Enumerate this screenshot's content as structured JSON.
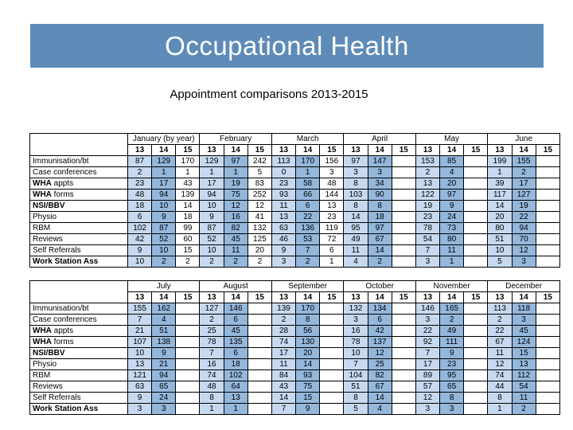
{
  "slide": {
    "title": "Occupational Health",
    "subtitle": "Appointment comparisons 2013-2015"
  },
  "colors": {
    "banner_blue": "#5e8bb7",
    "year13_cell": "#c6d9f0",
    "year14_cell": "#94b7dc",
    "year15_cell": "#ffffff"
  },
  "tables": [
    {
      "id": "jan-jun",
      "months": [
        "January (by year)",
        "February",
        "March",
        "April",
        "May",
        "June"
      ],
      "years": [
        "13",
        "14",
        "15"
      ],
      "rows": [
        {
          "label": [
            {
              "text": "Immunisation/bt",
              "bold": false
            }
          ],
          "values": [
            "87",
            "129",
            "170",
            "129",
            "97",
            "242",
            "113",
            "170",
            "156",
            "97",
            "147",
            "",
            "153",
            "85",
            "",
            "199",
            "155",
            ""
          ]
        },
        {
          "label": [
            {
              "text": "Case conferences",
              "bold": false
            }
          ],
          "values": [
            "2",
            "1",
            "1",
            "1",
            "1",
            "5",
            "0",
            "1",
            "3",
            "3",
            "3",
            "",
            "2",
            "4",
            "",
            "1",
            "2",
            ""
          ]
        },
        {
          "label": [
            {
              "text": "WHA",
              "bold": true
            },
            {
              "text": " appts",
              "bold": false
            }
          ],
          "values": [
            "23",
            "17",
            "43",
            "17",
            "19",
            "83",
            "23",
            "58",
            "48",
            "8",
            "34",
            "",
            "13",
            "20",
            "",
            "39",
            "17",
            ""
          ]
        },
        {
          "label": [
            {
              "text": "WHA",
              "bold": true
            },
            {
              "text": " forms",
              "bold": false
            }
          ],
          "values": [
            "48",
            "94",
            "139",
            "94",
            "75",
            "252",
            "93",
            "66",
            "144",
            "103",
            "90",
            "",
            "122",
            "97",
            "",
            "117",
            "127",
            ""
          ]
        },
        {
          "label": [
            {
              "text": "NSI/BBV",
              "bold": true
            }
          ],
          "values": [
            "18",
            "10",
            "14",
            "10",
            "12",
            "12",
            "11",
            "6",
            "13",
            "8",
            "8",
            "",
            "19",
            "9",
            "",
            "14",
            "19",
            ""
          ]
        },
        {
          "label": [
            {
              "text": "Physio",
              "bold": false
            }
          ],
          "values": [
            "6",
            "9",
            "18",
            "9",
            "16",
            "41",
            "13",
            "22",
            "23",
            "14",
            "18",
            "",
            "23",
            "24",
            "",
            "20",
            "22",
            ""
          ]
        },
        {
          "label": [
            {
              "text": "RBM",
              "bold": false
            }
          ],
          "values": [
            "102",
            "87",
            "99",
            "87",
            "82",
            "132",
            "63",
            "136",
            "119",
            "95",
            "97",
            "",
            "78",
            "73",
            "",
            "80",
            "94",
            ""
          ]
        },
        {
          "label": [
            {
              "text": "Reviews",
              "bold": false
            }
          ],
          "values": [
            "42",
            "52",
            "60",
            "52",
            "45",
            "125",
            "46",
            "53",
            "72",
            "49",
            "67",
            "",
            "54",
            "80",
            "",
            "51",
            "70",
            ""
          ]
        },
        {
          "label": [
            {
              "text": "Self Referrals",
              "bold": false
            }
          ],
          "values": [
            "9",
            "10",
            "15",
            "10",
            "11",
            "20",
            "9",
            "7",
            "6",
            "11",
            "14",
            "",
            "7",
            "11",
            "",
            "10",
            "12",
            ""
          ]
        },
        {
          "label": [
            {
              "text": "Work Station Ass",
              "bold": true
            }
          ],
          "values": [
            "10",
            "2",
            "2",
            "2",
            "2",
            "2",
            "3",
            "2",
            "1",
            "4",
            "2",
            "",
            "3",
            "1",
            "",
            "5",
            "3",
            ""
          ]
        }
      ]
    },
    {
      "id": "jul-dec",
      "months": [
        "July",
        "August",
        "September",
        "October",
        "November",
        "December"
      ],
      "years": [
        "13",
        "14",
        "15"
      ],
      "rows": [
        {
          "label": [
            {
              "text": "Immunisation/bt",
              "bold": false
            }
          ],
          "values": [
            "155",
            "162",
            "",
            "127",
            "146",
            "",
            "139",
            "170",
            "",
            "132",
            "134",
            "",
            "146",
            "165",
            "",
            "113",
            "118",
            ""
          ]
        },
        {
          "label": [
            {
              "text": "Case conferences",
              "bold": false
            }
          ],
          "values": [
            "7",
            "4",
            "",
            "2",
            "6",
            "",
            "2",
            "8",
            "",
            "3",
            "6",
            "",
            "3",
            "2",
            "",
            "2",
            "3",
            ""
          ]
        },
        {
          "label": [
            {
              "text": "WHA",
              "bold": true
            },
            {
              "text": " appts",
              "bold": false
            }
          ],
          "values": [
            "21",
            "51",
            "",
            "25",
            "45",
            "",
            "28",
            "56",
            "",
            "16",
            "42",
            "",
            "22",
            "49",
            "",
            "22",
            "45",
            ""
          ]
        },
        {
          "label": [
            {
              "text": "WHA",
              "bold": true
            },
            {
              "text": " forms",
              "bold": false
            }
          ],
          "values": [
            "107",
            "138",
            "",
            "78",
            "135",
            "",
            "74",
            "130",
            "",
            "78",
            "137",
            "",
            "92",
            "111",
            "",
            "67",
            "124",
            ""
          ]
        },
        {
          "label": [
            {
              "text": "NSI/BBV",
              "bold": true
            }
          ],
          "values": [
            "10",
            "9",
            "",
            "7",
            "6",
            "",
            "17",
            "20",
            "",
            "10",
            "12",
            "",
            "7",
            "9",
            "",
            "11",
            "15",
            ""
          ]
        },
        {
          "label": [
            {
              "text": "Physio",
              "bold": false
            }
          ],
          "values": [
            "13",
            "21",
            "",
            "16",
            "18",
            "",
            "11",
            "14",
            "",
            "7",
            "25",
            "",
            "17",
            "23",
            "",
            "12",
            "13",
            ""
          ]
        },
        {
          "label": [
            {
              "text": "RBM",
              "bold": false
            }
          ],
          "values": [
            "121",
            "94",
            "",
            "74",
            "102",
            "",
            "84",
            "93",
            "",
            "104",
            "82",
            "",
            "89",
            "95",
            "",
            "74",
            "112",
            ""
          ]
        },
        {
          "label": [
            {
              "text": "Reviews",
              "bold": false
            }
          ],
          "values": [
            "63",
            "65",
            "",
            "48",
            "64",
            "",
            "43",
            "75",
            "",
            "51",
            "67",
            "",
            "57",
            "65",
            "",
            "44",
            "54",
            ""
          ]
        },
        {
          "label": [
            {
              "text": "Self Referrals",
              "bold": false
            }
          ],
          "values": [
            "9",
            "24",
            "",
            "8",
            "13",
            "",
            "14",
            "15",
            "",
            "8",
            "14",
            "",
            "12",
            "8",
            "",
            "8",
            "11",
            ""
          ]
        },
        {
          "label": [
            {
              "text": "Work Station Ass",
              "bold": true
            }
          ],
          "values": [
            "3",
            "3",
            "",
            "1",
            "1",
            "",
            "7",
            "9",
            "",
            "5",
            "4",
            "",
            "3",
            "3",
            "",
            "1",
            "2",
            ""
          ]
        }
      ]
    }
  ]
}
